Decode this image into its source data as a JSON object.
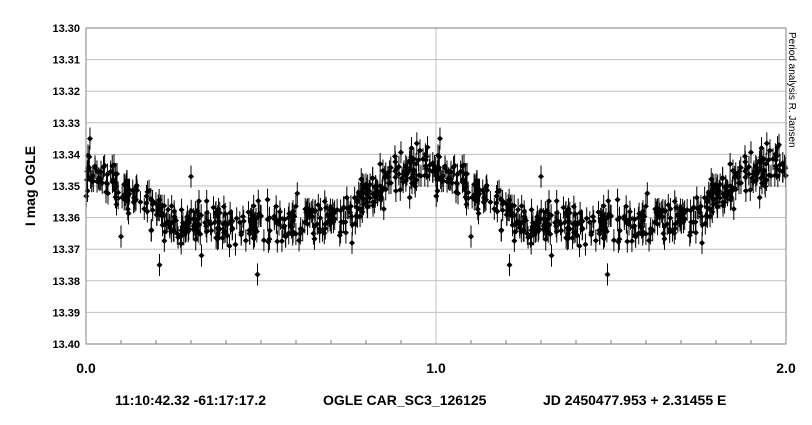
{
  "chart_data": {
    "type": "scatter",
    "ylabel": "I mag OGLE",
    "y_reversed": true,
    "ylim": [
      13.3,
      13.4
    ],
    "xlim": [
      0.0,
      2.0
    ],
    "ytick_labels": [
      "13.30",
      "13.31",
      "13.32",
      "13.33",
      "13.34",
      "13.35",
      "13.36",
      "13.37",
      "13.38",
      "13.39",
      "13.40"
    ],
    "xtick_labels": [
      "0.0",
      "1.0",
      "2.0"
    ],
    "grid": true,
    "error_bars": true,
    "side_note": "Period analysis  R. Jansen",
    "footer": {
      "coords": "11:10:42.32 -61:17:17.2",
      "object": "OGLE CAR_SC3_126125",
      "ephemeris": "JD 2450477.953 + 2.31455 E"
    },
    "series": [
      {
        "marker": "diamond",
        "color": "#000000",
        "profile_phase": [
          0.0,
          0.05,
          0.1,
          0.15,
          0.2,
          0.25,
          0.3,
          0.35,
          0.4,
          0.45,
          0.5,
          0.55,
          0.6,
          0.65,
          0.7,
          0.75,
          0.8,
          0.85,
          0.9,
          0.95,
          1.0
        ],
        "profile_mag": [
          13.345,
          13.347,
          13.35,
          13.354,
          13.358,
          13.361,
          13.362,
          13.362,
          13.362,
          13.362,
          13.362,
          13.362,
          13.361,
          13.361,
          13.36,
          13.358,
          13.354,
          13.349,
          13.346,
          13.344,
          13.345
        ],
        "scatter_mag": 0.003,
        "points_per_cycle": 460,
        "outliers": [
          {
            "x": 0.1,
            "y": 13.366
          },
          {
            "x": 0.21,
            "y": 13.375
          },
          {
            "x": 0.3,
            "y": 13.347
          },
          {
            "x": 0.33,
            "y": 13.372
          },
          {
            "x": 0.49,
            "y": 13.378
          },
          {
            "x": 0.76,
            "y": 13.368
          },
          {
            "x": 0.41,
            "y": 13.369
          },
          {
            "x": 0.27,
            "y": 13.366
          },
          {
            "x": 0.93,
            "y": 13.338
          },
          {
            "x": 1.1,
            "y": 13.366
          },
          {
            "x": 1.21,
            "y": 13.375
          },
          {
            "x": 1.3,
            "y": 13.347
          },
          {
            "x": 1.33,
            "y": 13.372
          },
          {
            "x": 1.49,
            "y": 13.378
          },
          {
            "x": 1.76,
            "y": 13.368
          },
          {
            "x": 1.41,
            "y": 13.369
          },
          {
            "x": 1.27,
            "y": 13.366
          },
          {
            "x": 1.93,
            "y": 13.338
          },
          {
            "x": 1.98,
            "y": 13.337
          }
        ]
      }
    ]
  }
}
